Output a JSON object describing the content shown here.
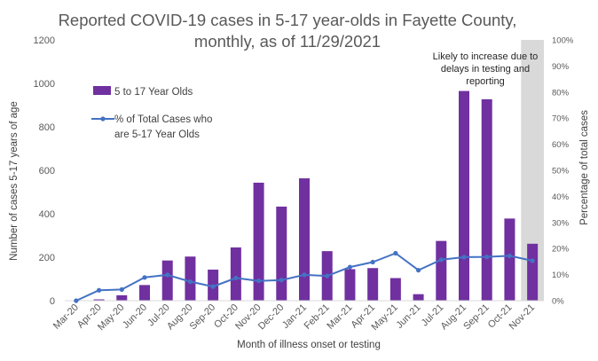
{
  "chart_data": {
    "type": "bar",
    "title_lines": [
      "Reported COVID-19 cases in 5-17 year-olds in Fayette County,",
      "monthly, as of 11/29/2021"
    ],
    "xlabel": "Month of illness onset or testing",
    "ylabel": "Number of cases 5-17 years of age",
    "y2label": "Percentage of total cases",
    "ylim": [
      0,
      1200
    ],
    "y2lim": [
      0,
      100
    ],
    "yticks": [
      "0",
      "200",
      "400",
      "600",
      "800",
      "1000",
      "1200"
    ],
    "y2ticks": [
      "0%",
      "10%",
      "20%",
      "30%",
      "40%",
      "50%",
      "60%",
      "70%",
      "80%",
      "90%",
      "100%"
    ],
    "categories": [
      "Mar-20",
      "Apr-20",
      "May-20",
      "Jun-20",
      "Jul-20",
      "Aug-20",
      "Sep-20",
      "Oct-20",
      "Nov-20",
      "Dec-20",
      "Jan-21",
      "Feb-21",
      "Mar-21",
      "Apr-21",
      "May-21",
      "Jun-21",
      "Jul-21",
      "Aug-21",
      "Sep-21",
      "Oct-21",
      "Nov-21"
    ],
    "series": [
      {
        "name": "5 to 17 Year Olds",
        "kind": "bar",
        "axis": "left",
        "color": "#7030A0",
        "values": [
          2,
          6,
          25,
          72,
          185,
          203,
          143,
          245,
          543,
          433,
          563,
          228,
          145,
          150,
          104,
          30,
          275,
          965,
          927,
          378,
          262
        ]
      },
      {
        "name": "% of Total Cases who are 5-17 Year Olds",
        "legend_lines": [
          "% of Total Cases who",
          "are 5-17 Year Olds"
        ],
        "kind": "line",
        "axis": "right",
        "color": "#4472C4",
        "values": [
          0,
          4,
          4.3,
          8.9,
          9.9,
          7.3,
          5.4,
          8.7,
          7.6,
          7.9,
          9.9,
          9.5,
          12.9,
          14.8,
          18.2,
          11.7,
          15.7,
          16.7,
          16.8,
          17.2,
          15.3
        ]
      }
    ],
    "shaded_region": {
      "category": "Nov-21",
      "color": "#D9D9D9",
      "note_lines": [
        "Likely to increase due to",
        "delays in testing and",
        "reporting"
      ]
    },
    "grid": false,
    "legend_position": "upper-left inside plot"
  }
}
